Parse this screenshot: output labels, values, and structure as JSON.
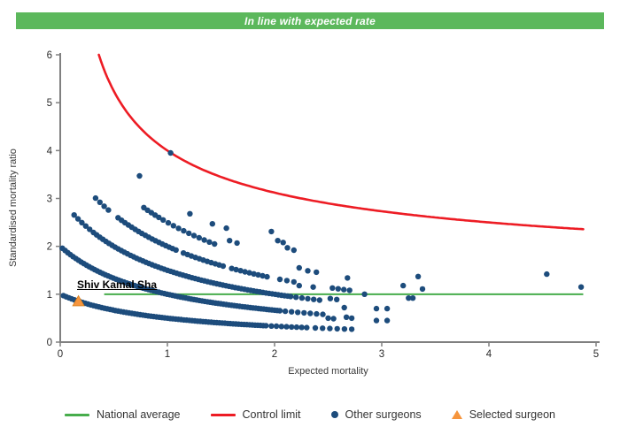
{
  "header": {
    "title": "In line with expected rate",
    "bg_color": "#5cb85c",
    "text_color": "#ffffff"
  },
  "chart_data": {
    "type": "scatter",
    "title": "In line with expected rate",
    "xlabel": "Expected mortality",
    "ylabel": "Standardised mortality ratio",
    "xlim": [
      0,
      5
    ],
    "ylim": [
      0,
      6
    ],
    "x_ticks": [
      "0",
      "1",
      "2",
      "3",
      "4",
      "5"
    ],
    "y_ticks": [
      "0",
      "1",
      "2",
      "3",
      "4",
      "5",
      "6"
    ],
    "grid": false,
    "legend_position": "bottom",
    "national_average": {
      "smr": 1,
      "x_start": 0.41,
      "x_end": 4.88,
      "color": "#47ad4c"
    },
    "control_limit": {
      "formula": "smr = base + coef * expected^power",
      "base": 1,
      "coef": 3,
      "power": -0.5,
      "x_start": 0.36,
      "x_end": 4.88,
      "color": "#ed1c24"
    },
    "selected_surgeon": {
      "name": "Shiv Kamal Sha",
      "expected": 0.17,
      "smr": 0.85,
      "color": "#f6953d"
    },
    "other_surgeons": {
      "color": "#1d4c7c",
      "dot_radius": 3.2,
      "bands_note": "dense curved bands of dots following smr = numerator/(1+expected); segments are [expected_start, expected_end, n_points]",
      "bands": [
        {
          "numerator": 1,
          "denominator_offset": 1,
          "segments": [
            [
              0.03,
              1.92,
              75
            ],
            [
              1.97,
              2.3,
              8
            ],
            [
              2.38,
              2.72,
              6
            ]
          ]
        },
        {
          "numerator": 2,
          "denominator_offset": 1,
          "segments": [
            [
              0.02,
              2.05,
              82
            ],
            [
              2.1,
              2.45,
              7
            ]
          ]
        },
        {
          "numerator": 3,
          "denominator_offset": 1,
          "segments": [
            [
              0.13,
              0.31,
              6
            ],
            [
              0.34,
              2.15,
              64
            ],
            [
              2.2,
              2.42,
              5
            ]
          ]
        },
        {
          "numerator": 4,
          "denominator_offset": 1,
          "segments": [
            [
              0.33,
              0.45,
              4
            ],
            [
              0.54,
              1.08,
              18
            ],
            [
              1.15,
              1.52,
              11
            ],
            [
              1.6,
              1.93,
              9
            ],
            [
              2.05,
              2.18,
              3
            ],
            [
              2.54,
              2.7,
              4
            ]
          ]
        },
        {
          "numerator": 5,
          "denominator_offset": 1,
          "segments": [
            [
              0.78,
              0.92,
              5
            ],
            [
              0.96,
              1.44,
              11
            ]
          ]
        }
      ],
      "points": [
        [
          1.03,
          3.95
        ],
        [
          0.74,
          3.47
        ],
        [
          1.21,
          2.68
        ],
        [
          1.42,
          2.47
        ],
        [
          1.55,
          2.38
        ],
        [
          1.58,
          2.12
        ],
        [
          1.65,
          2.07
        ],
        [
          1.97,
          2.31
        ],
        [
          2.03,
          2.12
        ],
        [
          2.08,
          2.08
        ],
        [
          2.12,
          1.97
        ],
        [
          2.18,
          1.92
        ],
        [
          2.23,
          1.55
        ],
        [
          2.31,
          1.49
        ],
        [
          2.39,
          1.46
        ],
        [
          2.68,
          1.34
        ],
        [
          2.23,
          1.18
        ],
        [
          2.36,
          1.15
        ],
        [
          2.52,
          0.91
        ],
        [
          2.58,
          0.89
        ],
        [
          2.65,
          0.72
        ],
        [
          2.5,
          0.5
        ],
        [
          2.55,
          0.49
        ],
        [
          2.67,
          0.52
        ],
        [
          2.72,
          0.5
        ],
        [
          2.84,
          1.0
        ],
        [
          2.95,
          0.7
        ],
        [
          3.05,
          0.7
        ],
        [
          2.95,
          0.45
        ],
        [
          3.05,
          0.45
        ],
        [
          3.2,
          1.18
        ],
        [
          3.25,
          0.92
        ],
        [
          3.29,
          0.92
        ],
        [
          3.34,
          1.37
        ],
        [
          3.38,
          1.11
        ],
        [
          4.54,
          1.42
        ],
        [
          4.86,
          1.15
        ]
      ]
    }
  },
  "legend": [
    {
      "label": "National average",
      "marker": "line",
      "color": "#47ad4c"
    },
    {
      "label": "Control limit",
      "marker": "line",
      "color": "#ed1c24"
    },
    {
      "label": "Other surgeons",
      "marker": "dot",
      "color": "#1d4c7c"
    },
    {
      "label": "Selected surgeon",
      "marker": "triangle",
      "color": "#f6953d"
    }
  ],
  "axis": {
    "color": "#808080",
    "tick_label_color": "#2b2b2b"
  }
}
